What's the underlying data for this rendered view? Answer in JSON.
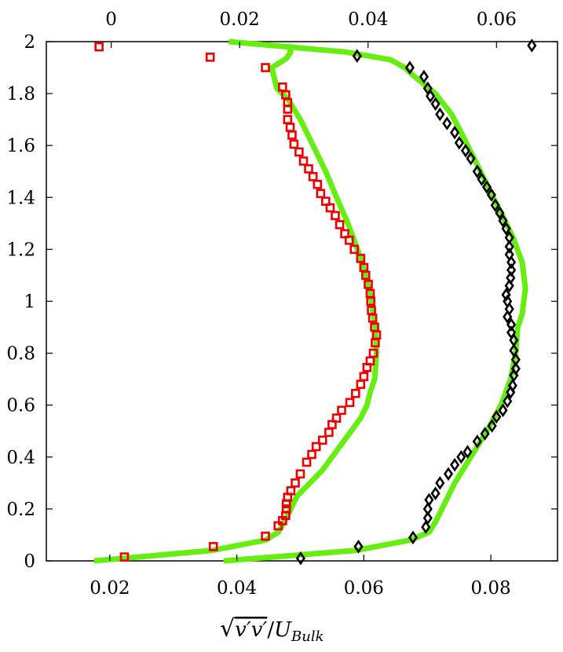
{
  "chart_data": {
    "type": "line",
    "title": "",
    "xlabel": "√(v′v′)/U_Bulk",
    "ylabel": "",
    "grid": false,
    "legend": "none",
    "ylim": [
      0,
      2
    ],
    "yticks": [
      0,
      0.2,
      0.4,
      0.6,
      0.8,
      1,
      1.2,
      1.4,
      1.6,
      1.8,
      2
    ],
    "ytick_labels": [
      "0",
      "0.2",
      "0.4",
      "0.6",
      "0.8",
      "1",
      "1.2",
      "1.4",
      "1.6",
      "1.8",
      "2"
    ],
    "bottom_axis": {
      "xlim": [
        0.01,
        0.0905
      ],
      "ticks": [
        0.02,
        0.04,
        0.06,
        0.08
      ],
      "tick_labels": [
        "0.02",
        "0.04",
        "0.06",
        "0.08"
      ]
    },
    "top_axis": {
      "xlim": [
        -0.0101,
        0.0695
      ],
      "ticks": [
        0,
        0.02,
        0.04,
        0.06
      ],
      "tick_labels": [
        "0",
        "0.02",
        "0.04",
        "0.06"
      ]
    },
    "colors": {
      "line": "#66ee11",
      "squares": "#ee0000",
      "diamonds": "#000000"
    },
    "series": [
      {
        "axis": "bottom",
        "style": "line",
        "x": [
          0.0175,
          0.036,
          0.0445,
          0.0465,
          0.0475,
          0.0485,
          0.0495,
          0.0515,
          0.0535,
          0.055,
          0.0565,
          0.058,
          0.0595,
          0.0605,
          0.061,
          0.0617,
          0.062,
          0.0618,
          0.0612,
          0.0603,
          0.059,
          0.0575,
          0.0557,
          0.054,
          0.052,
          0.05,
          0.048,
          0.0463,
          0.0455,
          0.0478,
          0.0485,
          0.048
        ],
        "y": [
          0,
          0.04,
          0.08,
          0.11,
          0.15,
          0.2,
          0.25,
          0.3,
          0.35,
          0.4,
          0.45,
          0.5,
          0.55,
          0.6,
          0.65,
          0.7,
          0.8,
          0.9,
          1.0,
          1.1,
          1.2,
          1.3,
          1.4,
          1.5,
          1.6,
          1.7,
          1.78,
          1.82,
          1.9,
          1.935,
          1.96,
          1.99
        ]
      },
      {
        "axis": "top",
        "style": "line",
        "x": [
          0.0175,
          0.038,
          0.0465,
          0.0495,
          0.0505,
          0.0515,
          0.0535,
          0.056,
          0.0585,
          0.0607,
          0.0622,
          0.063,
          0.0633,
          0.064,
          0.0645,
          0.064,
          0.0625,
          0.0605,
          0.0585,
          0.0565,
          0.0545,
          0.053,
          0.0505,
          0.0475,
          0.0457,
          0.0435,
          0.0365,
          0.0183
        ],
        "y": [
          0,
          0.04,
          0.08,
          0.11,
          0.15,
          0.2,
          0.3,
          0.4,
          0.5,
          0.6,
          0.7,
          0.8,
          0.9,
          0.95,
          1.05,
          1.15,
          1.25,
          1.35,
          1.45,
          1.55,
          1.65,
          1.72,
          1.8,
          1.86,
          1.9,
          1.93,
          1.96,
          2.0
        ]
      },
      {
        "axis": "bottom",
        "style": "square-markers",
        "x": [
          0.0223,
          0.0363,
          0.0445,
          0.0465,
          0.0472,
          0.0477,
          0.0478,
          0.0478,
          0.048,
          0.0485,
          0.0492,
          0.05,
          0.051,
          0.0518,
          0.0525,
          0.0535,
          0.0545,
          0.055,
          0.0557,
          0.0565,
          0.0578,
          0.0587,
          0.0595,
          0.06,
          0.0605,
          0.061,
          0.0615,
          0.0618,
          0.062,
          0.0617,
          0.0614,
          0.0612,
          0.0611,
          0.061,
          0.0607,
          0.0603,
          0.06,
          0.0595,
          0.0585,
          0.0577,
          0.057,
          0.0562,
          0.0555,
          0.0547,
          0.054,
          0.0532,
          0.0527,
          0.052,
          0.0513,
          0.0505,
          0.0498,
          0.049,
          0.0487,
          0.0484,
          0.048,
          0.048,
          0.048,
          0.0477,
          0.0472,
          0.0445,
          0.0358,
          0.0183
        ],
        "y": [
          0.015,
          0.055,
          0.095,
          0.135,
          0.155,
          0.175,
          0.2,
          0.22,
          0.245,
          0.27,
          0.3,
          0.335,
          0.38,
          0.41,
          0.44,
          0.465,
          0.495,
          0.525,
          0.55,
          0.58,
          0.61,
          0.645,
          0.68,
          0.71,
          0.745,
          0.77,
          0.8,
          0.84,
          0.87,
          0.9,
          0.935,
          0.965,
          1.0,
          1.03,
          1.065,
          1.1,
          1.13,
          1.165,
          1.2,
          1.235,
          1.26,
          1.295,
          1.33,
          1.36,
          1.385,
          1.415,
          1.45,
          1.48,
          1.51,
          1.54,
          1.575,
          1.605,
          1.64,
          1.67,
          1.7,
          1.74,
          1.765,
          1.795,
          1.825,
          1.9,
          1.94,
          1.98
        ]
      },
      {
        "axis": "top",
        "style": "diamond-markers",
        "x": [
          0.0295,
          0.0385,
          0.047,
          0.049,
          0.0493,
          0.0493,
          0.0495,
          0.0505,
          0.0512,
          0.0525,
          0.0535,
          0.0545,
          0.0555,
          0.057,
          0.0582,
          0.0593,
          0.06,
          0.061,
          0.0617,
          0.0622,
          0.0625,
          0.0627,
          0.063,
          0.063,
          0.0627,
          0.0627,
          0.0623,
          0.0623,
          0.0617,
          0.062,
          0.0617,
          0.0615,
          0.062,
          0.0622,
          0.0623,
          0.0623,
          0.062,
          0.062,
          0.062,
          0.0615,
          0.061,
          0.0605,
          0.0598,
          0.0592,
          0.0585,
          0.0577,
          0.057,
          0.056,
          0.0552,
          0.0542,
          0.0535,
          0.0523,
          0.0512,
          0.0505,
          0.0497,
          0.0493,
          0.0487,
          0.0465,
          0.0383,
          0.0655
        ],
        "y": [
          0.01,
          0.055,
          0.09,
          0.13,
          0.165,
          0.2,
          0.235,
          0.26,
          0.3,
          0.335,
          0.37,
          0.4,
          0.42,
          0.46,
          0.49,
          0.52,
          0.555,
          0.58,
          0.615,
          0.65,
          0.675,
          0.715,
          0.74,
          0.775,
          0.81,
          0.85,
          0.88,
          0.91,
          0.94,
          0.97,
          1.0,
          1.025,
          1.06,
          1.09,
          1.12,
          1.15,
          1.18,
          1.21,
          1.245,
          1.28,
          1.31,
          1.34,
          1.37,
          1.41,
          1.44,
          1.47,
          1.5,
          1.55,
          1.58,
          1.61,
          1.65,
          1.685,
          1.72,
          1.76,
          1.79,
          1.82,
          1.865,
          1.9,
          1.945,
          1.985
        ]
      }
    ]
  }
}
